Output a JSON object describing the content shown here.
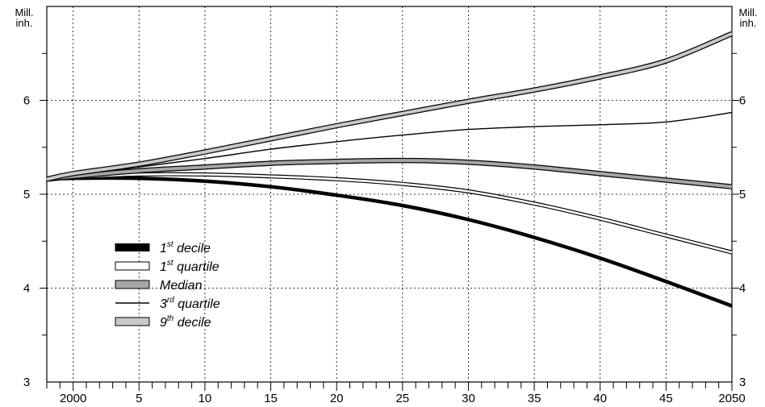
{
  "chart_data": {
    "type": "line",
    "title": "",
    "xlabel": "",
    "ylabel": "Mill. inh.",
    "y_unit_lines": [
      "Mill.",
      "inh."
    ],
    "xlim": [
      1998,
      2050
    ],
    "ylim": [
      3,
      7
    ],
    "grid": true,
    "x_tick_labels": [
      {
        "x": 2000,
        "label": "2000"
      },
      {
        "x": 2005,
        "label": "5"
      },
      {
        "x": 2010,
        "label": "10"
      },
      {
        "x": 2015,
        "label": "15"
      },
      {
        "x": 2020,
        "label": "20"
      },
      {
        "x": 2025,
        "label": "25"
      },
      {
        "x": 2030,
        "label": "30"
      },
      {
        "x": 2035,
        "label": "35"
      },
      {
        "x": 2040,
        "label": "40"
      },
      {
        "x": 2045,
        "label": "45"
      },
      {
        "x": 2050,
        "label": "2050"
      }
    ],
    "y_tick_labels": [
      {
        "y": 3,
        "label": "3"
      },
      {
        "y": 4,
        "label": "4"
      },
      {
        "y": 5,
        "label": "5"
      },
      {
        "y": 6,
        "label": "6"
      }
    ],
    "legend_position": "bottom-left",
    "x": [
      1998,
      2000,
      2005,
      2010,
      2015,
      2020,
      2025,
      2030,
      2035,
      2040,
      2045,
      2050
    ],
    "series": [
      {
        "name_main": "1",
        "name_sup": "st",
        "name_rest": " decile",
        "style": "thick-black",
        "color": "#000000",
        "values": [
          5.16,
          5.17,
          5.17,
          5.14,
          5.08,
          4.99,
          4.88,
          4.73,
          4.54,
          4.32,
          4.07,
          3.81
        ]
      },
      {
        "name_main": "1",
        "name_sup": "st",
        "name_rest": " quartile",
        "style": "hollow",
        "color": "#ffffff",
        "values": [
          5.16,
          5.18,
          5.21,
          5.21,
          5.19,
          5.16,
          5.11,
          5.03,
          4.9,
          4.74,
          4.56,
          4.38
        ]
      },
      {
        "name_main": "Median",
        "name_sup": "",
        "name_rest": "",
        "style": "grey-band",
        "color": "#a6a6a6",
        "values": [
          5.16,
          5.19,
          5.25,
          5.29,
          5.33,
          5.35,
          5.36,
          5.34,
          5.29,
          5.22,
          5.15,
          5.08
        ]
      },
      {
        "name_main": "3",
        "name_sup": "rd",
        "name_rest": " quartile",
        "style": "thin-black",
        "color": "#000000",
        "values": [
          5.16,
          5.2,
          5.29,
          5.38,
          5.48,
          5.56,
          5.63,
          5.69,
          5.72,
          5.74,
          5.77,
          5.87
        ]
      },
      {
        "name_main": "9",
        "name_sup": "th",
        "name_rest": " decile",
        "style": "light-band",
        "color": "#c8c8c8",
        "values": [
          5.16,
          5.22,
          5.32,
          5.45,
          5.59,
          5.73,
          5.86,
          5.99,
          6.11,
          6.25,
          6.42,
          6.71
        ]
      }
    ]
  }
}
